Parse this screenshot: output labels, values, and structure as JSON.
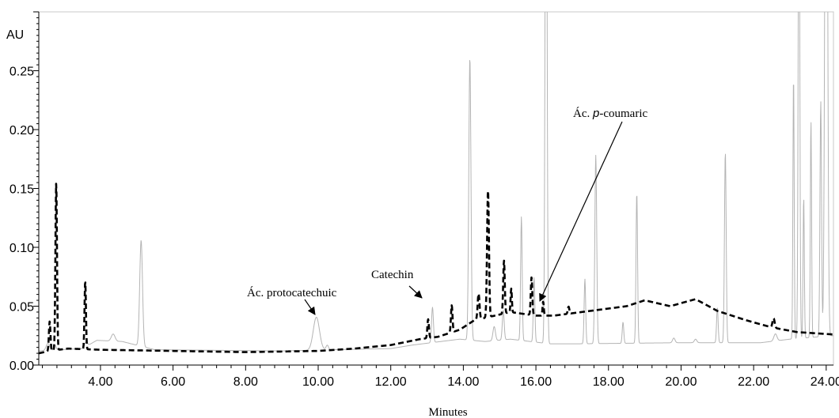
{
  "chart_data": {
    "type": "line",
    "title": "",
    "ylabel": "AU",
    "xlabel": "Minutes",
    "xlim": [
      2.3,
      24.2
    ],
    "ylim": [
      0.0,
      0.3
    ],
    "x_ticks": [
      4.0,
      6.0,
      8.0,
      10.0,
      12.0,
      14.0,
      16.0,
      18.0,
      20.0,
      22.0,
      24.0
    ],
    "x_tick_labels": [
      "4.00",
      "6.00",
      "8.00",
      "10.00",
      "12.00",
      "14.00",
      "16.00",
      "18.00",
      "20.00",
      "22.00",
      "24.00"
    ],
    "y_ticks": [
      0.0,
      0.05,
      0.1,
      0.15,
      0.2,
      0.25
    ],
    "y_tick_labels": [
      "0.00",
      "0.05",
      "0.10",
      "0.15",
      "0.20",
      "0.25"
    ],
    "grid": false,
    "series": [
      {
        "style": "solid-gray",
        "color": "#b4b4b4",
        "baseline": [
          [
            2.3,
            0.012
          ],
          [
            3.5,
            0.014
          ],
          [
            3.9,
            0.021
          ],
          [
            4.6,
            0.02
          ],
          [
            5.5,
            0.013
          ],
          [
            9.0,
            0.012
          ],
          [
            10.4,
            0.013
          ],
          [
            12.0,
            0.014
          ],
          [
            12.6,
            0.017
          ],
          [
            13.9,
            0.022
          ],
          [
            14.6,
            0.02
          ],
          [
            15.3,
            0.022
          ],
          [
            16.4,
            0.018
          ],
          [
            17.0,
            0.018
          ],
          [
            20.0,
            0.019
          ],
          [
            22.2,
            0.019
          ],
          [
            23.0,
            0.022
          ],
          [
            24.2,
            0.025
          ]
        ],
        "peaks": [
          [
            2.55,
            0.006,
            0.11
          ],
          [
            2.75,
            0.004,
            0.07
          ],
          [
            3.6,
            0.004,
            0.09
          ],
          [
            4.35,
            0.006,
            0.12
          ],
          [
            5.12,
            0.09,
            0.09
          ],
          [
            9.95,
            0.028,
            0.2
          ],
          [
            10.25,
            0.004,
            0.08
          ],
          [
            13.15,
            0.03,
            0.06
          ],
          [
            14.18,
            0.24,
            0.07
          ],
          [
            14.85,
            0.012,
            0.08
          ],
          [
            15.1,
            0.025,
            0.06
          ],
          [
            15.6,
            0.105,
            0.05
          ],
          [
            15.95,
            0.055,
            0.05
          ],
          [
            16.28,
            0.55,
            0.06
          ],
          [
            17.35,
            0.055,
            0.05
          ],
          [
            17.65,
            0.16,
            0.06
          ],
          [
            18.4,
            0.018,
            0.05
          ],
          [
            18.78,
            0.128,
            0.05
          ],
          [
            19.8,
            0.004,
            0.08
          ],
          [
            20.4,
            0.003,
            0.08
          ],
          [
            21.0,
            0.03,
            0.05
          ],
          [
            21.22,
            0.162,
            0.055
          ],
          [
            22.6,
            0.006,
            0.1
          ],
          [
            23.1,
            0.225,
            0.04
          ],
          [
            23.25,
            0.45,
            0.05
          ],
          [
            23.38,
            0.12,
            0.04
          ],
          [
            23.58,
            0.185,
            0.04
          ],
          [
            23.85,
            0.2,
            0.05
          ],
          [
            24.0,
            0.65,
            0.08
          ]
        ]
      },
      {
        "style": "dashed-black",
        "color": "#000000",
        "baseline": [
          [
            2.3,
            0.01
          ],
          [
            2.6,
            0.012
          ],
          [
            3.1,
            0.014
          ],
          [
            4.0,
            0.013
          ],
          [
            6.0,
            0.012
          ],
          [
            8.0,
            0.011
          ],
          [
            10.0,
            0.012
          ],
          [
            11.0,
            0.014
          ],
          [
            12.0,
            0.017
          ],
          [
            12.8,
            0.022
          ],
          [
            13.3,
            0.024
          ],
          [
            13.9,
            0.03
          ],
          [
            14.3,
            0.038
          ],
          [
            15.3,
            0.045
          ],
          [
            16.0,
            0.042
          ],
          [
            16.5,
            0.042
          ],
          [
            17.5,
            0.046
          ],
          [
            18.5,
            0.05
          ],
          [
            19.0,
            0.055
          ],
          [
            19.7,
            0.05
          ],
          [
            20.4,
            0.056
          ],
          [
            21.0,
            0.046
          ],
          [
            21.8,
            0.038
          ],
          [
            22.5,
            0.032
          ],
          [
            23.2,
            0.028
          ],
          [
            24.2,
            0.026
          ]
        ],
        "peaks": [
          [
            2.6,
            0.025,
            0.05
          ],
          [
            2.78,
            0.142,
            0.05
          ],
          [
            3.58,
            0.058,
            0.045
          ],
          [
            13.03,
            0.016,
            0.05
          ],
          [
            13.68,
            0.023,
            0.05
          ],
          [
            14.42,
            0.022,
            0.06
          ],
          [
            14.68,
            0.108,
            0.06
          ],
          [
            15.12,
            0.045,
            0.05
          ],
          [
            15.32,
            0.02,
            0.04
          ],
          [
            15.88,
            0.032,
            0.05
          ],
          [
            16.2,
            0.012,
            0.04
          ],
          [
            16.9,
            0.006,
            0.05
          ],
          [
            22.55,
            0.008,
            0.07
          ]
        ]
      }
    ],
    "annotations": [
      {
        "text": "Catechin",
        "x": 13.0,
        "y": 0.058
      },
      {
        "text_parts": [
          "Ác. ",
          "p",
          "-coumaric"
        ],
        "x": 16.2,
        "y": 0.055
      },
      {
        "text": "Ác. protocatechuic",
        "x": 10.0,
        "y": 0.042
      }
    ]
  }
}
